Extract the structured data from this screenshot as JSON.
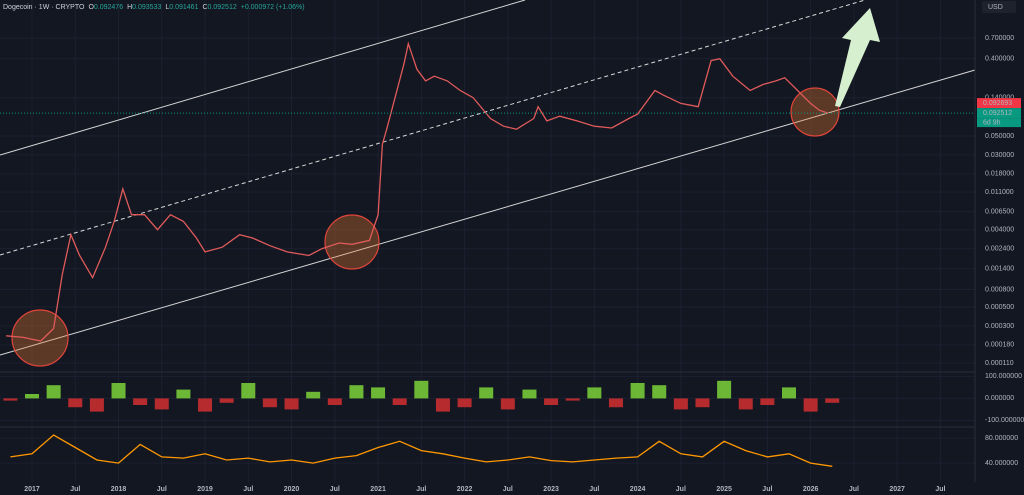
{
  "chart_data": [
    {
      "type": "line",
      "title": "Dogecoin · 1W · CRYPTO",
      "ohlc": [
        {
          "label": "O",
          "value": "0.092476"
        },
        {
          "label": "H",
          "value": "0.093533"
        },
        {
          "label": "L",
          "value": "0.091461"
        },
        {
          "label": "C",
          "value": "0.092512"
        }
      ],
      "change": "+0.000972 (+1.06%)",
      "currency": "USD",
      "countdown": "6d 9h",
      "price_tags": [
        {
          "value": 0.092693,
          "label": "0.092693",
          "color": "#f23645"
        },
        {
          "value": 0.092512,
          "label": "0.092512",
          "color": "#089981"
        }
      ],
      "log_scale": true,
      "grid": true,
      "color": "#e05a5a",
      "x": [
        2016.7,
        2016.9,
        2017.0,
        2017.1,
        2017.25,
        2017.35,
        2017.45,
        2017.55,
        2017.7,
        2017.85,
        2017.95,
        2018.05,
        2018.15,
        2018.3,
        2018.45,
        2018.6,
        2018.75,
        2018.9,
        2019.0,
        2019.2,
        2019.4,
        2019.55,
        2019.75,
        2019.95,
        2020.2,
        2020.35,
        2020.55,
        2020.7,
        2020.9,
        2021.0,
        2021.05,
        2021.1,
        2021.3,
        2021.35,
        2021.45,
        2021.55,
        2021.65,
        2021.8,
        2021.95,
        2022.1,
        2022.3,
        2022.45,
        2022.6,
        2022.8,
        2022.85,
        2022.95,
        2023.1,
        2023.3,
        2023.5,
        2023.7,
        2023.9,
        2024.0,
        2024.2,
        2024.3,
        2024.5,
        2024.7,
        2024.85,
        2024.95,
        2025.1,
        2025.3,
        2025.45,
        2025.6,
        2025.7,
        2025.85,
        2026.0,
        2026.1,
        2026.2
      ],
      "values": [
        0.00023,
        0.00022,
        0.00021,
        0.0002,
        0.00028,
        0.0012,
        0.0035,
        0.002,
        0.0011,
        0.0025,
        0.005,
        0.012,
        0.006,
        0.006,
        0.004,
        0.006,
        0.005,
        0.0032,
        0.0022,
        0.0025,
        0.0035,
        0.0032,
        0.0026,
        0.0022,
        0.002,
        0.0024,
        0.0028,
        0.0027,
        0.003,
        0.006,
        0.04,
        0.06,
        0.35,
        0.6,
        0.3,
        0.22,
        0.25,
        0.22,
        0.17,
        0.14,
        0.08,
        0.065,
        0.06,
        0.08,
        0.11,
        0.075,
        0.085,
        0.075,
        0.065,
        0.062,
        0.08,
        0.09,
        0.17,
        0.15,
        0.12,
        0.11,
        0.38,
        0.4,
        0.25,
        0.17,
        0.2,
        0.22,
        0.24,
        0.17,
        0.12,
        0.1,
        0.0925
      ],
      "xlim": [
        2016.63,
        2027.9
      ],
      "xticks": [
        2017,
        {
          "value": 2017.5,
          "label": "Jul"
        },
        2018,
        {
          "value": 2018.5,
          "label": "Jul"
        },
        2019,
        {
          "value": 2019.5,
          "label": "Jul"
        },
        2020,
        {
          "value": 2020.5,
          "label": "Jul"
        },
        2021,
        {
          "value": 2021.5,
          "label": "Jul"
        },
        2022,
        {
          "value": 2022.5,
          "label": "Jul"
        },
        2023,
        {
          "value": 2023.5,
          "label": "Jul"
        },
        2024,
        {
          "value": 2024.5,
          "label": "Jul"
        },
        2025,
        {
          "value": 2025.5,
          "label": "Jul"
        },
        2026,
        {
          "value": 2026.5,
          "label": "Jul"
        },
        2027,
        {
          "value": 2027.5,
          "label": "Jul"
        }
      ],
      "ylim": [
        8e-05,
        1.7
      ],
      "yticks": [
        {
          "value": 0.7,
          "label": "0.700000"
        },
        {
          "value": 0.4,
          "label": "0.400000"
        },
        {
          "value": 0.14,
          "label": "0.140000"
        },
        {
          "value": 0.05,
          "label": "0.050000"
        },
        {
          "value": 0.03,
          "label": "0.030000"
        },
        {
          "value": 0.018,
          "label": "0.018000"
        },
        {
          "value": 0.011,
          "label": "0.011000"
        },
        {
          "value": 0.0065,
          "label": "0.006500"
        },
        {
          "value": 0.004,
          "label": "0.004000"
        },
        {
          "value": 0.0024,
          "label": "0.002400"
        },
        {
          "value": 0.0014,
          "label": "0.001400"
        },
        {
          "value": 0.0008,
          "label": "0.000800"
        },
        {
          "value": 0.0005,
          "label": "0.000500"
        },
        {
          "value": 0.0003,
          "label": "0.000300"
        },
        {
          "value": 0.00018,
          "label": "0.000180"
        },
        {
          "value": 0.00011,
          "label": "0.000110"
        }
      ]
    },
    {
      "type": "bar",
      "colors": [
        "#7cd53a",
        "#d32f2f"
      ],
      "x": [
        2016.75,
        2017.0,
        2017.25,
        2017.5,
        2017.75,
        2018.0,
        2018.25,
        2018.5,
        2018.75,
        2019.0,
        2019.25,
        2019.5,
        2019.75,
        2020.0,
        2020.25,
        2020.5,
        2020.75,
        2021.0,
        2021.25,
        2021.5,
        2021.75,
        2022.0,
        2022.25,
        2022.5,
        2022.75,
        2023.0,
        2023.25,
        2023.5,
        2023.75,
        2024.0,
        2024.25,
        2024.5,
        2024.75,
        2025.0,
        2025.25,
        2025.5,
        2025.75,
        2026.0,
        2026.25
      ],
      "values": [
        -10,
        20,
        60,
        -40,
        -60,
        70,
        -30,
        -50,
        40,
        -60,
        -20,
        70,
        -40,
        -50,
        30,
        -30,
        60,
        50,
        -30,
        80,
        -60,
        -40,
        50,
        -50,
        40,
        -30,
        -10,
        50,
        -40,
        70,
        60,
        -50,
        -40,
        80,
        -50,
        -30,
        50,
        -60,
        -20
      ],
      "ylim": [
        -130,
        120
      ],
      "yticks": [
        {
          "value": 100,
          "label": "100.000000"
        },
        {
          "value": 0,
          "label": "0.000000"
        },
        {
          "value": -100,
          "label": "-100.000000"
        }
      ]
    },
    {
      "type": "line",
      "color": "#ff9800",
      "x": [
        2016.75,
        2017.0,
        2017.25,
        2017.5,
        2017.75,
        2018.0,
        2018.25,
        2018.5,
        2018.75,
        2019.0,
        2019.25,
        2019.5,
        2019.75,
        2020.0,
        2020.25,
        2020.5,
        2020.75,
        2021.0,
        2021.25,
        2021.5,
        2021.75,
        2022.0,
        2022.25,
        2022.5,
        2022.75,
        2023.0,
        2023.25,
        2023.5,
        2023.75,
        2024.0,
        2024.25,
        2024.5,
        2024.75,
        2025.0,
        2025.25,
        2025.5,
        2025.75,
        2026.0,
        2026.25
      ],
      "values": [
        50,
        55,
        85,
        65,
        45,
        40,
        70,
        50,
        48,
        55,
        45,
        48,
        42,
        45,
        40,
        48,
        52,
        65,
        75,
        60,
        55,
        48,
        42,
        45,
        50,
        44,
        42,
        45,
        48,
        50,
        75,
        55,
        50,
        75,
        60,
        50,
        55,
        40,
        35
      ],
      "ylim": [
        13,
        93
      ],
      "yticks": [
        {
          "value": 80,
          "label": "80.000000"
        },
        {
          "value": 40,
          "label": "40.000000"
        }
      ]
    }
  ]
}
